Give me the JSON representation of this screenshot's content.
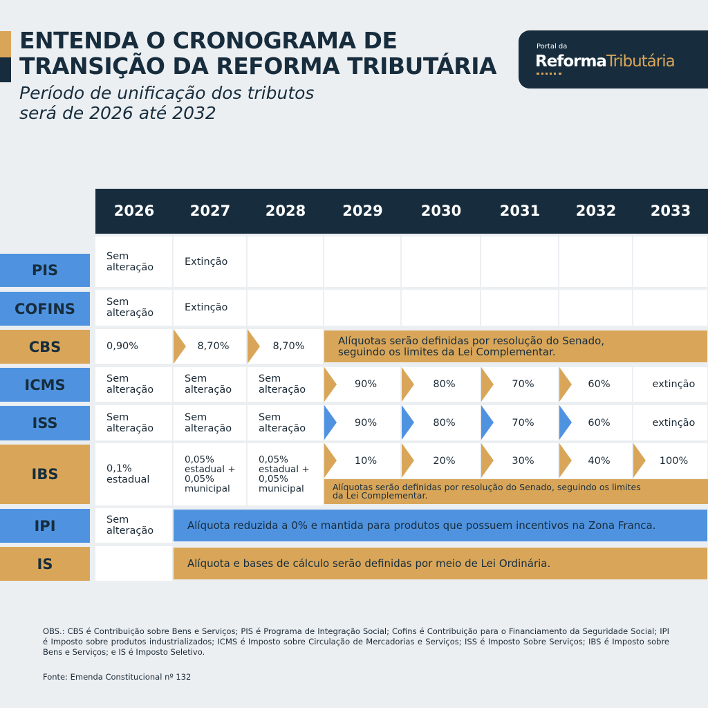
{
  "header": {
    "title_line1": "ENTENDA O CRONOGRAMA DE",
    "title_line2": "TRANSIÇÃO DA REFORMA TRIBUTÁRIA",
    "subtitle_line1": "Período de unificação dos tributos",
    "subtitle_line2": "será de 2026 até 2032"
  },
  "logo": {
    "small": "Portal da",
    "word1": "Reforma",
    "word2": "Tributária"
  },
  "colors": {
    "dark": "#172d3d",
    "blue": "#4f93e0",
    "gold": "#d9a659",
    "background": "#eceff2"
  },
  "table": {
    "years": [
      "2026",
      "2027",
      "2028",
      "2029",
      "2030",
      "2031",
      "2032",
      "2033"
    ],
    "rows": [
      {
        "label": "PIS",
        "label_color": "blue",
        "cells": [
          {
            "text": "Sem\nalteração"
          },
          {
            "text": "Extinção"
          },
          {
            "text": ""
          },
          {
            "text": ""
          },
          {
            "text": ""
          },
          {
            "text": ""
          },
          {
            "text": ""
          },
          {
            "text": ""
          }
        ]
      },
      {
        "label": "COFINS",
        "label_color": "blue",
        "cells": [
          {
            "text": "Sem\nalteração"
          },
          {
            "text": "Extinção"
          },
          {
            "text": ""
          },
          {
            "text": ""
          },
          {
            "text": ""
          },
          {
            "text": ""
          },
          {
            "text": ""
          },
          {
            "text": ""
          }
        ]
      },
      {
        "label": "CBS",
        "label_color": "gold",
        "cells": [
          {
            "text": "0,90%"
          },
          {
            "text": "8,70%",
            "arrow": "gold"
          },
          {
            "text": "8,70%",
            "arrow": "gold"
          },
          {
            "text": "Alíquotas serão definidas por resolução do Senado,\nseguindo os limites da Lei Complementar.",
            "band": "gold",
            "span": 5
          }
        ]
      },
      {
        "label": "ICMS",
        "label_color": "blue",
        "cells": [
          {
            "text": "Sem\nalteração"
          },
          {
            "text": "Sem\nalteração"
          },
          {
            "text": "Sem\nalteração"
          },
          {
            "text": "90%",
            "arrow": "gold"
          },
          {
            "text": "80%",
            "arrow": "gold"
          },
          {
            "text": "70%",
            "arrow": "gold"
          },
          {
            "text": "60%",
            "arrow": "gold"
          },
          {
            "text": "extinção"
          }
        ]
      },
      {
        "label": "ISS",
        "label_color": "blue",
        "cells": [
          {
            "text": "Sem\nalteração"
          },
          {
            "text": "Sem\nalteração"
          },
          {
            "text": "Sem\nalteração"
          },
          {
            "text": "90%",
            "arrow": "blue"
          },
          {
            "text": "80%",
            "arrow": "blue"
          },
          {
            "text": "70%",
            "arrow": "blue"
          },
          {
            "text": "60%",
            "arrow": "blue"
          },
          {
            "text": "extinção"
          }
        ]
      },
      {
        "label": "IBS",
        "label_color": "gold",
        "cells": [
          {
            "text": "0,1%\nestadual"
          },
          {
            "text": "0,05%\nestadual +\n0,05%\nmunicipal"
          },
          {
            "text": "0,05%\nestadual +\n0,05%\nmunicipal"
          },
          {
            "text": "10%",
            "arrow": "gold"
          },
          {
            "text": "20%",
            "arrow": "gold"
          },
          {
            "text": "30%",
            "arrow": "gold"
          },
          {
            "text": "40%",
            "arrow": "gold"
          },
          {
            "text": "100%",
            "arrow": "gold"
          }
        ],
        "note": "Alíquotas serão definidas por resolução do Senado, seguindo os limites\nda Lei Complementar."
      },
      {
        "label": "IPI",
        "label_color": "blue",
        "cells": [
          {
            "text": "Sem\nalteração"
          },
          {
            "text": "Alíquota reduzida a 0% e mantida para produtos que possuem incentivos na Zona Franca.",
            "band": "blue",
            "span": 7
          }
        ]
      },
      {
        "label": "IS",
        "label_color": "gold",
        "cells": [
          {
            "text": ""
          },
          {
            "text": "Alíquota e bases de cálculo serão definidas por meio de Lei Ordinária.",
            "band": "gold",
            "span": 7
          }
        ]
      }
    ]
  },
  "footer": {
    "obs": "OBS.: CBS é Contribuição sobre Bens e Serviços; PIS é Programa de Integração Social; Cofins é Contribuição para o Financiamento da Seguridade Social; IPI é Imposto sobre produtos industrializados; ICMS é Imposto sobre Circulação de Mercadorias e Serviços; ISS é Imposto Sobre Serviços; IBS é Imposto sobre Bens e Serviços; e IS é Imposto Seletivo.",
    "fonte": "Fonte: Emenda Constitucional nº 132"
  }
}
